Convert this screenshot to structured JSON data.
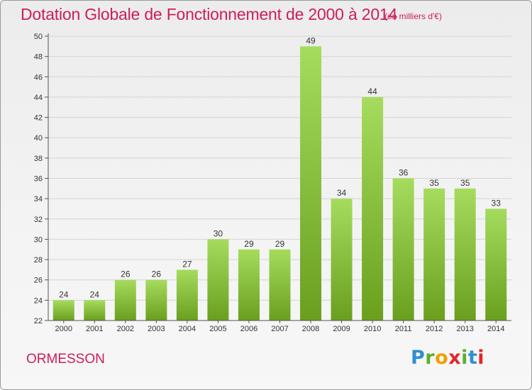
{
  "header": {
    "title": "Dotation Globale de Fonctionnement de 2000 à 2014",
    "subtitle": "(en milliers d'€)"
  },
  "footer": {
    "commune": "ORMESSON",
    "logo": {
      "text": "Proxiti",
      "letters": [
        "P",
        "r",
        "o",
        "x",
        "i",
        "t",
        "i"
      ],
      "colors": [
        "#2f8fd0",
        "#5bb02b",
        "#f0a000",
        "#e2262a",
        "#5bb02b",
        "#2f8fd0",
        "#e2262a"
      ]
    }
  },
  "colors": {
    "accent": "#cc1d58",
    "bar_light": "#a6dc5e",
    "bar_dark": "#6a9f1e"
  },
  "chart_data": {
    "type": "bar",
    "title": "Dotation Globale de Fonctionnement de 2000 à 2014",
    "subtitle": "(en milliers d'€)",
    "categories": [
      "2000",
      "2001",
      "2002",
      "2003",
      "2004",
      "2005",
      "2006",
      "2007",
      "2008",
      "2009",
      "2010",
      "2011",
      "2012",
      "2013",
      "2014"
    ],
    "values": [
      24,
      24,
      26,
      26,
      27,
      30,
      29,
      29,
      49,
      34,
      44,
      36,
      35,
      35,
      33
    ],
    "xlabel": "",
    "ylabel": "",
    "ylim": [
      22,
      50
    ],
    "yticks": [
      22,
      24,
      26,
      28,
      30,
      32,
      34,
      36,
      38,
      40,
      42,
      44,
      46,
      48,
      50
    ],
    "grid": true,
    "legend": "none"
  }
}
